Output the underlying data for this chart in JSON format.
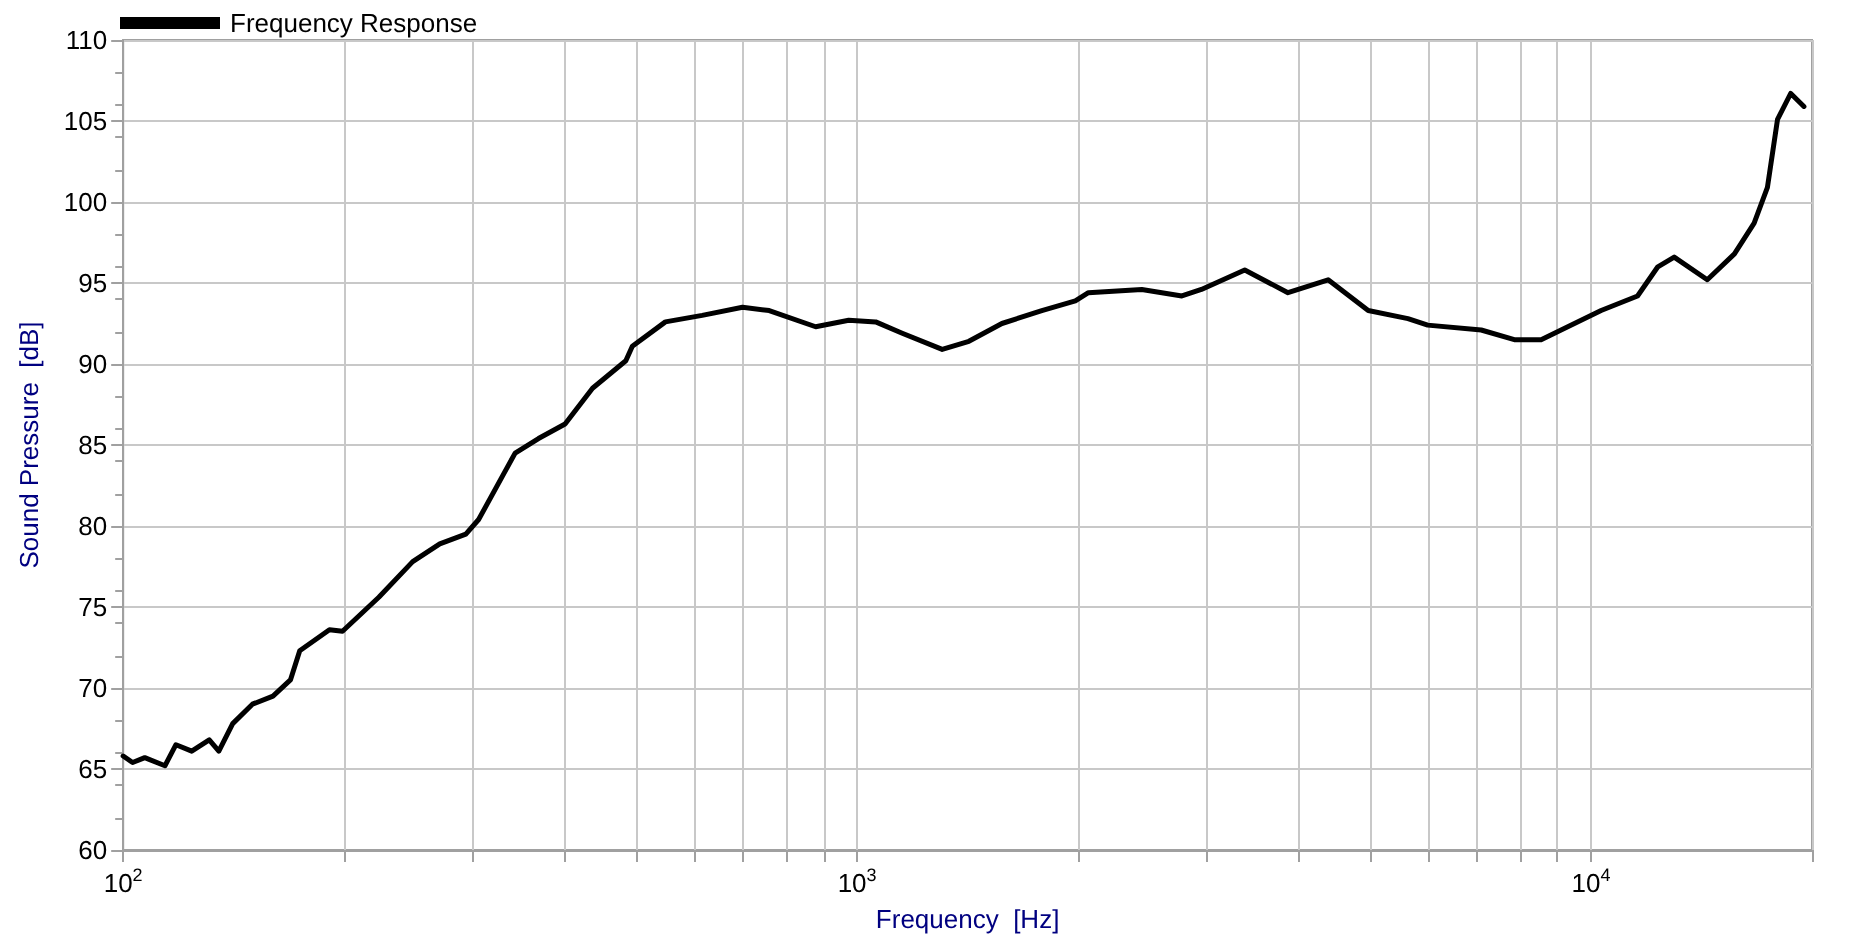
{
  "chart_data": {
    "type": "line",
    "xlabel": "Frequency  [Hz]",
    "ylabel": "Sound Pressure  [dB]",
    "log": "x",
    "grid": true,
    "legend": "top left",
    "marker": "none",
    "line_style": "solid",
    "xlim": [
      100,
      20000
    ],
    "ylim": [
      60,
      110
    ],
    "xticks": [
      {
        "value": 100,
        "label": "10$^{2}$"
      },
      {
        "value": 200,
        "label": null
      },
      {
        "value": 300,
        "label": null
      },
      {
        "value": 400,
        "label": null
      },
      {
        "value": 500,
        "label": null
      },
      {
        "value": 600,
        "label": null
      },
      {
        "value": 700,
        "label": null
      },
      {
        "value": 800,
        "label": null
      },
      {
        "value": 900,
        "label": null
      },
      {
        "value": 1000,
        "label": "10$^{3}$"
      },
      {
        "value": 2000,
        "label": null
      },
      {
        "value": 3000,
        "label": null
      },
      {
        "value": 4000,
        "label": null
      },
      {
        "value": 5000,
        "label": null
      },
      {
        "value": 6000,
        "label": null
      },
      {
        "value": 7000,
        "label": null
      },
      {
        "value": 8000,
        "label": null
      },
      {
        "value": 9000,
        "label": null
      },
      {
        "value": 10000,
        "label": "10$^{4}$"
      },
      {
        "value": 20000,
        "label": null
      }
    ],
    "yticks": [
      60,
      65,
      70,
      75,
      80,
      85,
      90,
      95,
      100,
      105,
      110
    ],
    "series": [
      {
        "name": "Frequency Response",
        "color": "#000000",
        "x": [
          100,
          103,
          107,
          114,
          118,
          124,
          131,
          135,
          141,
          150,
          160,
          169,
          174,
          191,
          199,
          223,
          248,
          270,
          293,
          305,
          342,
          368,
          400,
          436,
          484,
          494,
          548,
          615,
          698,
          759,
          878,
          974,
          1060,
          1152,
          1306,
          1420,
          1575,
          1785,
          1983,
          2066,
          2443,
          2770,
          2945,
          3374,
          3864,
          4383,
          4970,
          5630,
          5990,
          7085,
          7860,
          8550,
          10320,
          11570,
          12330,
          12980,
          14400,
          15680,
          16680,
          17390,
          17950,
          18710,
          19500
        ],
        "values": [
          65.8,
          65.4,
          65.7,
          65.2,
          66.5,
          66.1,
          66.8,
          66.1,
          67.8,
          69.0,
          69.5,
          70.5,
          72.3,
          73.6,
          73.5,
          75.6,
          77.8,
          78.9,
          79.5,
          80.4,
          84.5,
          85.4,
          86.3,
          88.5,
          90.2,
          91.1,
          92.6,
          93.0,
          93.5,
          93.3,
          92.3,
          92.7,
          92.6,
          91.9,
          90.9,
          91.4,
          92.5,
          93.3,
          93.9,
          94.4,
          94.6,
          94.2,
          94.6,
          95.8,
          94.4,
          95.2,
          93.3,
          92.8,
          92.4,
          92.1,
          91.5,
          91.5,
          93.3,
          94.2,
          96.0,
          96.6,
          95.2,
          96.8,
          98.7,
          100.9,
          105.1,
          106.7,
          105.9
        ]
      }
    ]
  }
}
